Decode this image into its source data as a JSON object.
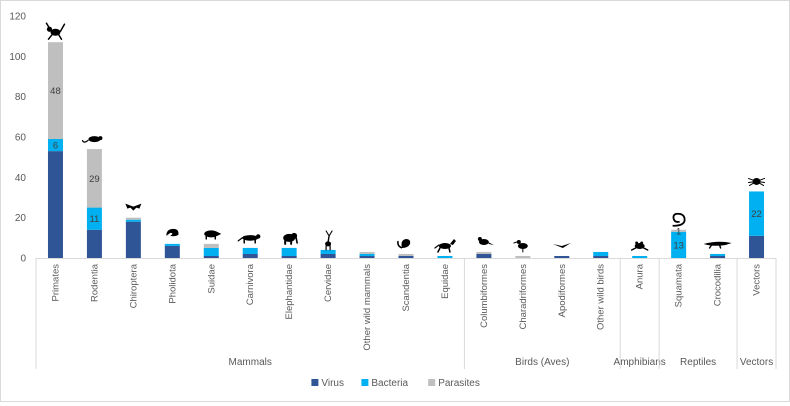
{
  "chart_data": {
    "type": "bar",
    "stacked": true,
    "title": "",
    "xlabel": "",
    "ylabel": "",
    "ylim": [
      0,
      120
    ],
    "yticks": [
      0,
      20,
      40,
      60,
      80,
      100,
      120
    ],
    "grid": false,
    "legend_position": "bottom",
    "categories": [
      "Primates",
      "Rodentia",
      "Chiroptera",
      "Pholidota",
      "Suidae",
      "Carnivora",
      "Elephantidae",
      "Cervidae",
      "Other wild mammals",
      "Scandentia",
      "Equidae",
      "Columbiformes",
      "Charadriformes",
      "Apodiformes",
      "Other wild birds",
      "Anura",
      "Squamata",
      "Crocodilia",
      "Vectors"
    ],
    "groups": [
      {
        "name": "Mammals",
        "span": 11
      },
      {
        "name": "Birds (Aves)",
        "span": 4
      },
      {
        "name": "Amphibians",
        "span": 1
      },
      {
        "name": "Reptiles",
        "span": 2
      },
      {
        "name": "Vectors",
        "span": 1
      }
    ],
    "series": [
      {
        "name": "Virus",
        "color": "#2f5597",
        "values": [
          53,
          14,
          18,
          6,
          1,
          2,
          1,
          2,
          1,
          1,
          0,
          2,
          0,
          1,
          1,
          0,
          0,
          1,
          11
        ]
      },
      {
        "name": "Bacteria",
        "color": "#00b0f0",
        "values": [
          6,
          11,
          1,
          1,
          4,
          3,
          4,
          2,
          1,
          0,
          1,
          0,
          0,
          0,
          2,
          1,
          13,
          1,
          22
        ]
      },
      {
        "name": "Parasites",
        "color": "#bfbfbf",
        "values": [
          48,
          29,
          1,
          0,
          2,
          0,
          0,
          0,
          1,
          1,
          0,
          1,
          1,
          0,
          0,
          0,
          1,
          0,
          0
        ]
      }
    ],
    "data_labels": [
      {
        "category": "Primates",
        "series": "Bacteria",
        "text": "6"
      },
      {
        "category": "Primates",
        "series": "Parasites",
        "text": "48"
      },
      {
        "category": "Rodentia",
        "series": "Bacteria",
        "text": "11"
      },
      {
        "category": "Rodentia",
        "series": "Parasites",
        "text": "29"
      },
      {
        "category": "Squamata",
        "series": "Bacteria",
        "text": "13"
      },
      {
        "category": "Squamata",
        "series": "Parasites",
        "text": "1"
      },
      {
        "category": "Vectors",
        "series": "Bacteria",
        "text": "22"
      }
    ],
    "icons": [
      "monkey-icon",
      "rat-icon",
      "bat-icon",
      "pangolin-icon",
      "boar-icon",
      "wildcat-icon",
      "elephant-icon",
      "deer-icon",
      "",
      "treeshrew-icon",
      "horse-icon",
      "pigeon-icon",
      "shorebird-icon",
      "swift-icon",
      "",
      "frog-icon",
      "snake-icon",
      "crocodile-icon",
      "tick-icon"
    ]
  }
}
